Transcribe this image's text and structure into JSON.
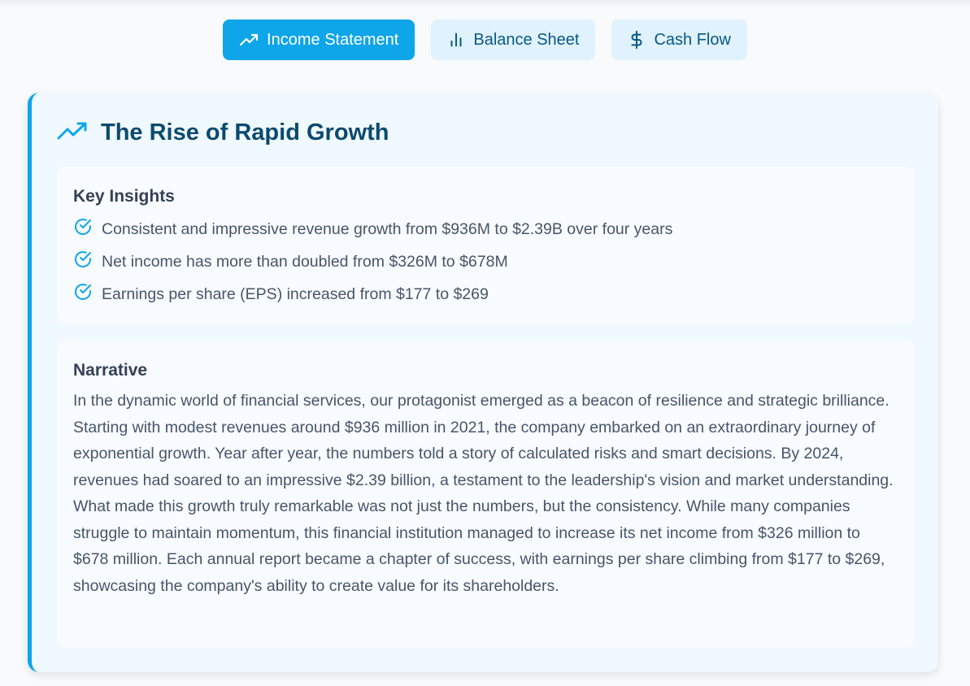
{
  "tabs": [
    {
      "label": "Income Statement",
      "icon": "trending-up-icon",
      "active": true
    },
    {
      "label": "Balance Sheet",
      "icon": "bar-chart-icon",
      "active": false
    },
    {
      "label": "Cash Flow",
      "icon": "dollar-sign-icon",
      "active": false
    }
  ],
  "card": {
    "title": "The Rise of Rapid Growth",
    "icon": "trending-up-icon",
    "accent_color": "#0ea5e9"
  },
  "insights": {
    "heading": "Key Insights",
    "items": [
      "Consistent and impressive revenue growth from $936M to $2.39B over four years",
      "Net income has more than doubled from $326M to $678M",
      "Earnings per share (EPS) increased from $177 to $269"
    ]
  },
  "narrative": {
    "heading": "Narrative",
    "text": "In the dynamic world of financial services, our protagonist emerged as a beacon of resilience and strategic brilliance. Starting with modest revenues around $936 million in 2021, the company embarked on an extraordinary journey of exponential growth. Year after year, the numbers told a story of calculated risks and smart decisions. By 2024, revenues had soared to an impressive $2.39 billion, a testament to the leadership's vision and market understanding. What made this growth truly remarkable was not just the numbers, but the consistency. While many companies struggle to maintain momentum, this financial institution managed to increase its net income from $326 million to $678 million. Each annual report became a chapter of success, with earnings per share climbing from $177 to $269, showcasing the company's ability to create value for its shareholders."
  },
  "colors": {
    "active_tab_bg": "#0ea5e9",
    "inactive_tab_bg": "#e0f2fe",
    "title_color": "#0c4a6e",
    "check_color": "#0ea5e9"
  }
}
